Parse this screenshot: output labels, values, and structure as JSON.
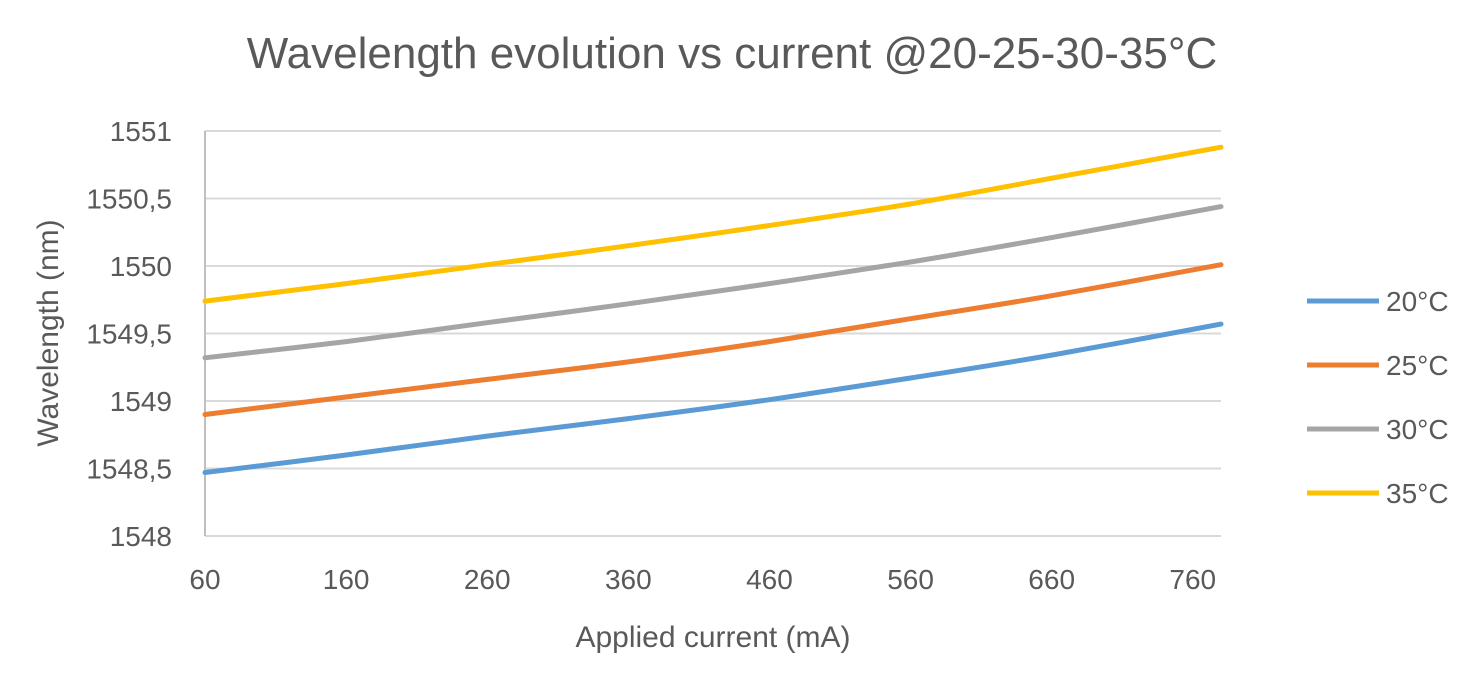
{
  "chart_data": {
    "type": "line",
    "title": "Wavelength evolution vs current @20-25-30-35°C",
    "xlabel": "Applied current (mA)",
    "ylabel": "Wavelength (nm)",
    "xlim": [
      60,
      780
    ],
    "ylim": [
      1548,
      1551
    ],
    "xticks": [
      "60",
      "160",
      "260",
      "360",
      "460",
      "560",
      "660",
      "760"
    ],
    "yticks": [
      "1548",
      "1548,5",
      "1549",
      "1549,5",
      "1550",
      "1550,5",
      "1551"
    ],
    "grid": true,
    "legend_position": "right",
    "x": [
      60,
      160,
      260,
      360,
      460,
      560,
      660,
      780
    ],
    "series": [
      {
        "name": "20°C",
        "color": "#5b9bd5",
        "values": [
          1548.47,
          1548.6,
          1548.74,
          1548.87,
          1549.01,
          1549.17,
          1549.34,
          1549.57
        ]
      },
      {
        "name": "25°C",
        "color": "#ed7d31",
        "values": [
          1548.9,
          1549.03,
          1549.16,
          1549.29,
          1549.44,
          1549.61,
          1549.78,
          1550.01
        ]
      },
      {
        "name": "30°C",
        "color": "#a5a5a5",
        "values": [
          1549.32,
          1549.44,
          1549.58,
          1549.72,
          1549.87,
          1550.03,
          1550.21,
          1550.44
        ]
      },
      {
        "name": "35°C",
        "color": "#ffc000",
        "values": [
          1549.74,
          1549.87,
          1550.01,
          1550.15,
          1550.3,
          1550.46,
          1550.65,
          1550.88
        ]
      }
    ]
  }
}
